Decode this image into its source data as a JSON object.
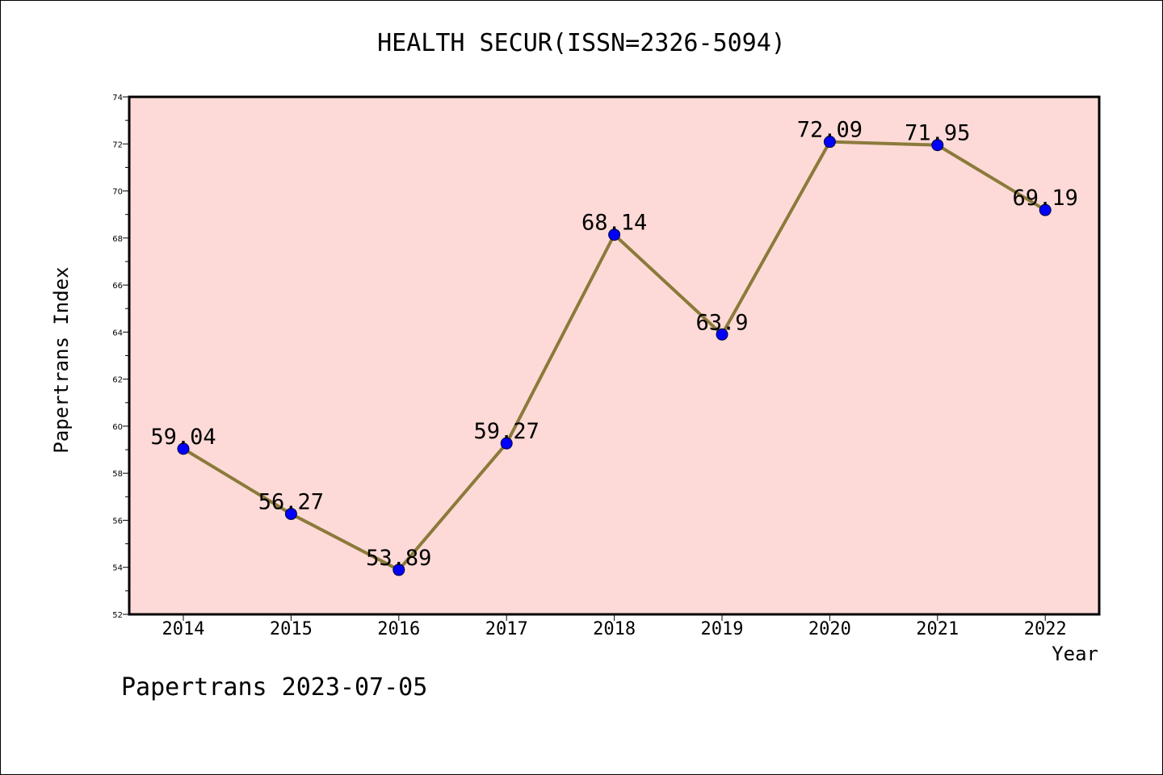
{
  "chart_data": {
    "type": "line",
    "title": "HEALTH SECUR(ISSN=2326-5094)",
    "xlabel": "Year",
    "ylabel": "Papertrans Index",
    "categories": [
      "2014",
      "2015",
      "2016",
      "2017",
      "2018",
      "2019",
      "2020",
      "2021",
      "2022"
    ],
    "values": [
      59.04,
      56.27,
      53.89,
      59.27,
      68.14,
      63.9,
      72.09,
      71.95,
      69.19
    ],
    "data_labels": [
      "59.04",
      "56.27",
      "53.89",
      "59.27",
      "68.14",
      "63.9",
      "72.09",
      "71.95",
      "69.19"
    ],
    "ylim": [
      52,
      74
    ],
    "yticks": [
      52,
      54,
      56,
      58,
      60,
      62,
      64,
      66,
      68,
      70,
      72,
      74
    ],
    "grid": false,
    "colors": {
      "plot_background": "#fddad7",
      "line": "#8b7a3a",
      "marker": "#0000ff"
    }
  },
  "footer": "Papertrans 2023-07-05"
}
